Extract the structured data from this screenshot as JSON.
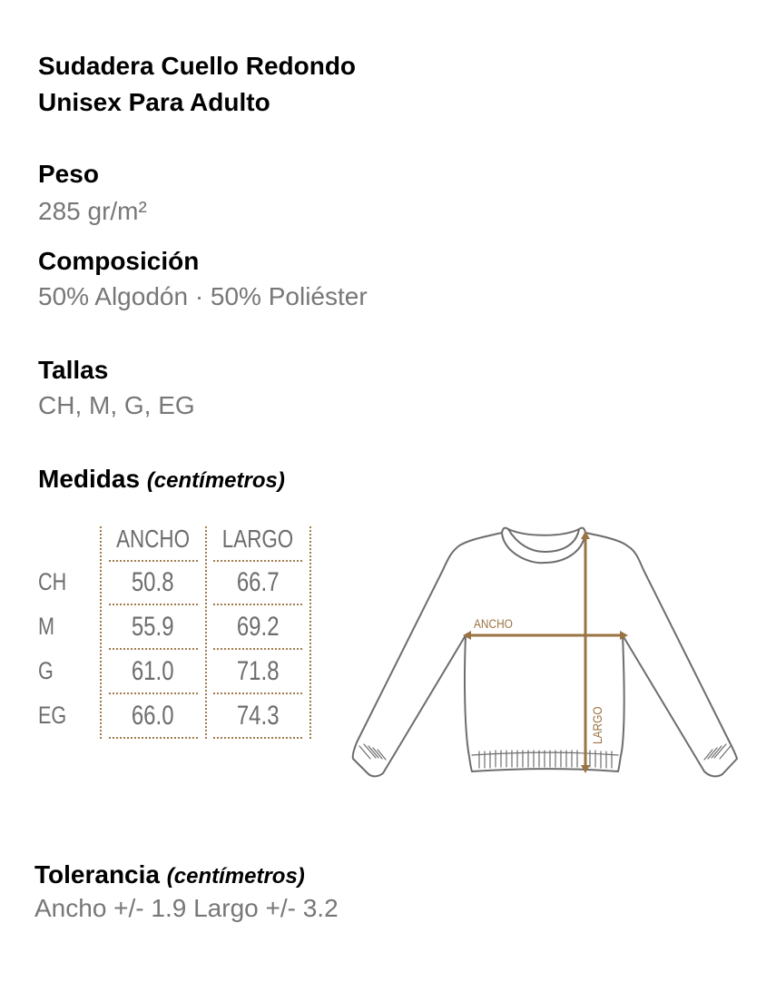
{
  "title": {
    "line1": "Sudadera Cuello Redondo",
    "line2": "Unisex Para Adulto"
  },
  "peso": {
    "label": "Peso",
    "value": "285 gr/m²"
  },
  "composicion": {
    "label": "Composición",
    "value": "50% Algodón · 50% Poliéster"
  },
  "tallas": {
    "label": "Tallas",
    "value": "CH, M, G, EG"
  },
  "medidas": {
    "label": "Medidas",
    "unit": "(centímetros)"
  },
  "table": {
    "columns": [
      "ANCHO",
      "LARGO"
    ],
    "rows": [
      {
        "size": "CH",
        "ancho": "50.8",
        "largo": "66.7"
      },
      {
        "size": "M",
        "ancho": "55.9",
        "largo": "69.2"
      },
      {
        "size": "G",
        "ancho": "61.0",
        "largo": "71.8"
      },
      {
        "size": "EG",
        "ancho": "66.0",
        "largo": "74.3"
      }
    ]
  },
  "diagram": {
    "ancho_label": "ANCHO",
    "largo_label": "LARGO",
    "accent_color": "#9a7442",
    "outline_color": "#6d6d6d"
  },
  "tolerancia": {
    "label": "Tolerancia",
    "unit": "(centímetros)",
    "value": "Ancho +/- 1.9 Largo +/- 3.2"
  }
}
